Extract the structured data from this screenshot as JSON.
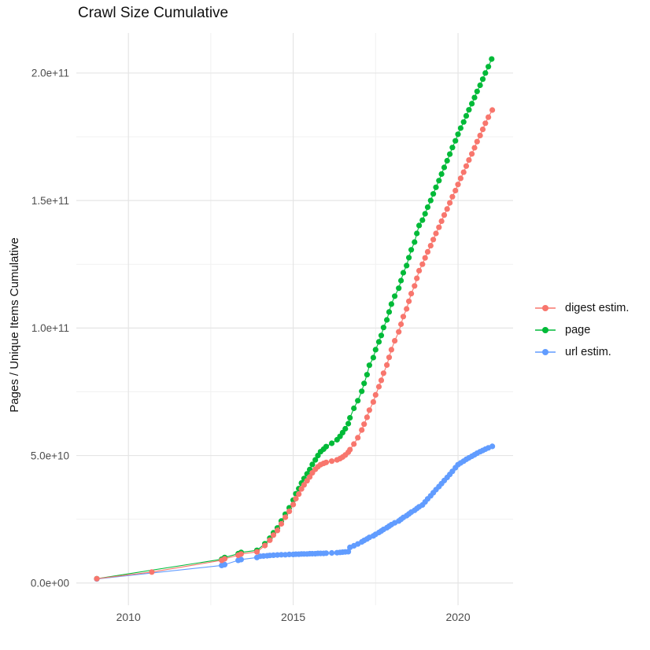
{
  "chart_data": {
    "type": "line",
    "title": "Crawl Size Cumulative",
    "xlabel": "",
    "ylabel": "Pages / Unique Items Cumulative",
    "y_unit": "items (point values stored in billions, 1e9)",
    "grid": "on",
    "legend_position": "right",
    "style": {
      "background": "#ffffff",
      "grid_major": "#e5e5e5",
      "grid_minor": "#f1f1f1",
      "tick_text_color": "#4d4d4d",
      "title_color": "#111111",
      "point_radius": 3.6,
      "line_width": 1.1
    },
    "x_axis": {
      "range": [
        2008.42,
        2021.67
      ],
      "ticks": [
        {
          "label": "2010",
          "value": 2010
        },
        {
          "label": "2015",
          "value": 2015
        },
        {
          "label": "2020",
          "value": 2020
        }
      ],
      "minor_ticks": [
        2012.5,
        2017.5
      ]
    },
    "y_axis": {
      "range": [
        -8.7,
        215.7
      ],
      "ticks": [
        {
          "label": "0.0e+00",
          "value": 0
        },
        {
          "label": "5.0e+10",
          "value": 50
        },
        {
          "label": "1.0e+11",
          "value": 100
        },
        {
          "label": "1.5e+11",
          "value": 150
        },
        {
          "label": "2.0e+11",
          "value": 200
        }
      ],
      "minor_ticks": [
        25,
        75,
        125,
        175
      ]
    },
    "series": [
      {
        "id": "digest-estim",
        "label": "digest estim.",
        "color": "#F8766D",
        "draw_index": 2,
        "points": [
          [
            2009.04,
            1.7
          ],
          [
            2010.71,
            4.3
          ],
          [
            2012.83,
            8.9
          ],
          [
            2012.92,
            9.5
          ],
          [
            2013.33,
            10.9
          ],
          [
            2013.42,
            11.4
          ],
          [
            2013.9,
            12.2
          ],
          [
            2014.14,
            14.7
          ],
          [
            2014.29,
            16.8
          ],
          [
            2014.4,
            18.8
          ],
          [
            2014.52,
            20.6
          ],
          [
            2014.64,
            23.2
          ],
          [
            2014.76,
            25.8
          ],
          [
            2014.88,
            28.1
          ],
          [
            2015.0,
            30.8
          ],
          [
            2015.08,
            33.1
          ],
          [
            2015.17,
            34.9
          ],
          [
            2015.25,
            36.9
          ],
          [
            2015.33,
            38.5
          ],
          [
            2015.42,
            40.1
          ],
          [
            2015.5,
            41.6
          ],
          [
            2015.58,
            43.2
          ],
          [
            2015.67,
            44.6
          ],
          [
            2015.75,
            45.6
          ],
          [
            2015.83,
            46.4
          ],
          [
            2015.92,
            46.9
          ],
          [
            2016.0,
            47.3
          ],
          [
            2016.17,
            47.8
          ],
          [
            2016.33,
            48.3
          ],
          [
            2016.42,
            48.8
          ],
          [
            2016.5,
            49.4
          ],
          [
            2016.58,
            50.2
          ],
          [
            2016.67,
            51.3
          ],
          [
            2016.72,
            52.3
          ],
          [
            2016.84,
            54.5
          ],
          [
            2016.96,
            57.0
          ],
          [
            2017.08,
            60.0
          ],
          [
            2017.15,
            62.3
          ],
          [
            2017.24,
            65.0
          ],
          [
            2017.31,
            67.8
          ],
          [
            2017.43,
            71.0
          ],
          [
            2017.5,
            73.8
          ],
          [
            2017.6,
            77.0
          ],
          [
            2017.67,
            79.5
          ],
          [
            2017.74,
            82.3
          ],
          [
            2017.84,
            85.5
          ],
          [
            2017.91,
            88.5
          ],
          [
            2017.98,
            91.5
          ],
          [
            2018.08,
            95.0
          ],
          [
            2018.2,
            98.5
          ],
          [
            2018.27,
            101.5
          ],
          [
            2018.34,
            104.5
          ],
          [
            2018.44,
            107.5
          ],
          [
            2018.51,
            110.5
          ],
          [
            2018.58,
            113.5
          ],
          [
            2018.68,
            116.5
          ],
          [
            2018.75,
            119.5
          ],
          [
            2018.82,
            122.5
          ],
          [
            2018.92,
            125.0
          ],
          [
            2019.0,
            127.5
          ],
          [
            2019.08,
            129.9
          ],
          [
            2019.17,
            132.3
          ],
          [
            2019.25,
            134.7
          ],
          [
            2019.33,
            137.1
          ],
          [
            2019.42,
            139.5
          ],
          [
            2019.5,
            141.9
          ],
          [
            2019.58,
            144.3
          ],
          [
            2019.67,
            146.7
          ],
          [
            2019.75,
            149.1
          ],
          [
            2019.83,
            151.5
          ],
          [
            2019.92,
            153.9
          ],
          [
            2020.0,
            156.3
          ],
          [
            2020.08,
            158.7
          ],
          [
            2020.17,
            161.1
          ],
          [
            2020.25,
            163.5
          ],
          [
            2020.33,
            165.9
          ],
          [
            2020.42,
            168.3
          ],
          [
            2020.5,
            170.7
          ],
          [
            2020.58,
            173.1
          ],
          [
            2020.67,
            175.5
          ],
          [
            2020.75,
            177.9
          ],
          [
            2020.83,
            180.3
          ],
          [
            2020.92,
            182.7
          ],
          [
            2021.04,
            185.5
          ]
        ]
      },
      {
        "id": "page",
        "label": "page",
        "color": "#00BA38",
        "draw_index": 0,
        "points": [
          [
            2009.04,
            1.7
          ],
          [
            2012.83,
            9.3
          ],
          [
            2012.92,
            10.0
          ],
          [
            2013.33,
            11.5
          ],
          [
            2013.42,
            12.0
          ],
          [
            2013.9,
            12.8
          ],
          [
            2014.14,
            15.4
          ],
          [
            2014.29,
            17.6
          ],
          [
            2014.4,
            19.7
          ],
          [
            2014.52,
            21.6
          ],
          [
            2014.64,
            24.3
          ],
          [
            2014.76,
            27.0
          ],
          [
            2014.88,
            29.5
          ],
          [
            2015.0,
            32.5
          ],
          [
            2015.08,
            35.0
          ],
          [
            2015.17,
            37.0
          ],
          [
            2015.25,
            39.2
          ],
          [
            2015.33,
            41.0
          ],
          [
            2015.42,
            42.8
          ],
          [
            2015.5,
            44.5
          ],
          [
            2015.58,
            46.5
          ],
          [
            2015.67,
            48.3
          ],
          [
            2015.75,
            50.0
          ],
          [
            2015.83,
            51.5
          ],
          [
            2015.92,
            52.5
          ],
          [
            2016.0,
            53.5
          ],
          [
            2016.17,
            54.8
          ],
          [
            2016.33,
            56.2
          ],
          [
            2016.42,
            57.5
          ],
          [
            2016.5,
            59.0
          ],
          [
            2016.58,
            60.5
          ],
          [
            2016.67,
            62.5
          ],
          [
            2016.72,
            64.8
          ],
          [
            2016.84,
            68.5
          ],
          [
            2016.96,
            71.5
          ],
          [
            2017.08,
            75.2
          ],
          [
            2017.15,
            78.3
          ],
          [
            2017.24,
            81.7
          ],
          [
            2017.31,
            85.4
          ],
          [
            2017.43,
            88.4
          ],
          [
            2017.5,
            91.5
          ],
          [
            2017.6,
            94.6
          ],
          [
            2017.67,
            97.1
          ],
          [
            2017.74,
            100.2
          ],
          [
            2017.84,
            103.2
          ],
          [
            2017.91,
            106.3
          ],
          [
            2017.98,
            109.4
          ],
          [
            2018.08,
            112.5
          ],
          [
            2018.2,
            115.6
          ],
          [
            2018.27,
            118.6
          ],
          [
            2018.34,
            121.7
          ],
          [
            2018.44,
            124.5
          ],
          [
            2018.51,
            127.6
          ],
          [
            2018.58,
            130.7
          ],
          [
            2018.68,
            133.7
          ],
          [
            2018.75,
            137.1
          ],
          [
            2018.82,
            140.2
          ],
          [
            2018.92,
            142.3
          ],
          [
            2019.0,
            144.8
          ],
          [
            2019.08,
            147.4
          ],
          [
            2019.17,
            150.0
          ],
          [
            2019.25,
            152.6
          ],
          [
            2019.33,
            155.2
          ],
          [
            2019.42,
            157.8
          ],
          [
            2019.5,
            160.4
          ],
          [
            2019.58,
            163.0
          ],
          [
            2019.67,
            165.6
          ],
          [
            2019.75,
            168.2
          ],
          [
            2019.83,
            170.8
          ],
          [
            2019.92,
            173.4
          ],
          [
            2020.0,
            176.0
          ],
          [
            2020.08,
            178.4
          ],
          [
            2020.17,
            180.8
          ],
          [
            2020.25,
            183.2
          ],
          [
            2020.33,
            185.6
          ],
          [
            2020.42,
            188.0
          ],
          [
            2020.5,
            190.4
          ],
          [
            2020.58,
            192.8
          ],
          [
            2020.67,
            195.2
          ],
          [
            2020.75,
            197.6
          ],
          [
            2020.83,
            200.0
          ],
          [
            2020.92,
            202.5
          ],
          [
            2021.02,
            205.5
          ]
        ]
      },
      {
        "id": "url-estim",
        "label": "url estim.",
        "color": "#619CFF",
        "draw_index": 1,
        "points": [
          [
            2009.04,
            1.6
          ],
          [
            2012.83,
            6.9
          ],
          [
            2012.92,
            7.2
          ],
          [
            2013.33,
            8.9
          ],
          [
            2013.42,
            9.2
          ],
          [
            2013.9,
            10.0
          ],
          [
            2014.0,
            10.5
          ],
          [
            2014.1,
            10.6
          ],
          [
            2014.21,
            10.7
          ],
          [
            2014.29,
            10.8
          ],
          [
            2014.4,
            10.9
          ],
          [
            2014.52,
            11.0
          ],
          [
            2014.64,
            11.1
          ],
          [
            2014.76,
            11.1
          ],
          [
            2014.88,
            11.2
          ],
          [
            2015.0,
            11.2
          ],
          [
            2015.08,
            11.3
          ],
          [
            2015.17,
            11.3
          ],
          [
            2015.25,
            11.4
          ],
          [
            2015.33,
            11.4
          ],
          [
            2015.42,
            11.4
          ],
          [
            2015.5,
            11.5
          ],
          [
            2015.58,
            11.5
          ],
          [
            2015.67,
            11.5
          ],
          [
            2015.75,
            11.6
          ],
          [
            2015.83,
            11.6
          ],
          [
            2015.92,
            11.6
          ],
          [
            2016.0,
            11.7
          ],
          [
            2016.17,
            11.8
          ],
          [
            2016.33,
            11.9
          ],
          [
            2016.42,
            12.0
          ],
          [
            2016.5,
            12.1
          ],
          [
            2016.58,
            12.2
          ],
          [
            2016.67,
            12.3
          ],
          [
            2016.72,
            14.0
          ],
          [
            2016.84,
            14.6
          ],
          [
            2016.96,
            15.3
          ],
          [
            2017.08,
            16.1
          ],
          [
            2017.15,
            16.7
          ],
          [
            2017.24,
            17.3
          ],
          [
            2017.31,
            17.9
          ],
          [
            2017.43,
            18.5
          ],
          [
            2017.5,
            19.1
          ],
          [
            2017.6,
            19.8
          ],
          [
            2017.67,
            20.4
          ],
          [
            2017.74,
            21.0
          ],
          [
            2017.84,
            21.7
          ],
          [
            2017.91,
            22.3
          ],
          [
            2017.98,
            22.9
          ],
          [
            2018.08,
            23.6
          ],
          [
            2018.2,
            24.3
          ],
          [
            2018.27,
            25.0
          ],
          [
            2018.34,
            25.7
          ],
          [
            2018.44,
            26.4
          ],
          [
            2018.51,
            27.1
          ],
          [
            2018.58,
            27.8
          ],
          [
            2018.68,
            28.5
          ],
          [
            2018.75,
            29.2
          ],
          [
            2018.82,
            29.9
          ],
          [
            2018.92,
            30.6
          ],
          [
            2019.0,
            31.8
          ],
          [
            2019.08,
            33.0
          ],
          [
            2019.17,
            34.2
          ],
          [
            2019.25,
            35.4
          ],
          [
            2019.33,
            36.6
          ],
          [
            2019.42,
            37.8
          ],
          [
            2019.5,
            39.0
          ],
          [
            2019.58,
            40.2
          ],
          [
            2019.67,
            41.4
          ],
          [
            2019.75,
            42.6
          ],
          [
            2019.83,
            43.8
          ],
          [
            2019.92,
            45.2
          ],
          [
            2020.0,
            46.4
          ],
          [
            2020.08,
            47.1
          ],
          [
            2020.17,
            47.8
          ],
          [
            2020.25,
            48.5
          ],
          [
            2020.33,
            49.1
          ],
          [
            2020.42,
            49.7
          ],
          [
            2020.5,
            50.3
          ],
          [
            2020.58,
            50.9
          ],
          [
            2020.67,
            51.5
          ],
          [
            2020.75,
            52.0
          ],
          [
            2020.83,
            52.5
          ],
          [
            2020.92,
            53.0
          ],
          [
            2021.04,
            53.6
          ]
        ]
      }
    ]
  }
}
